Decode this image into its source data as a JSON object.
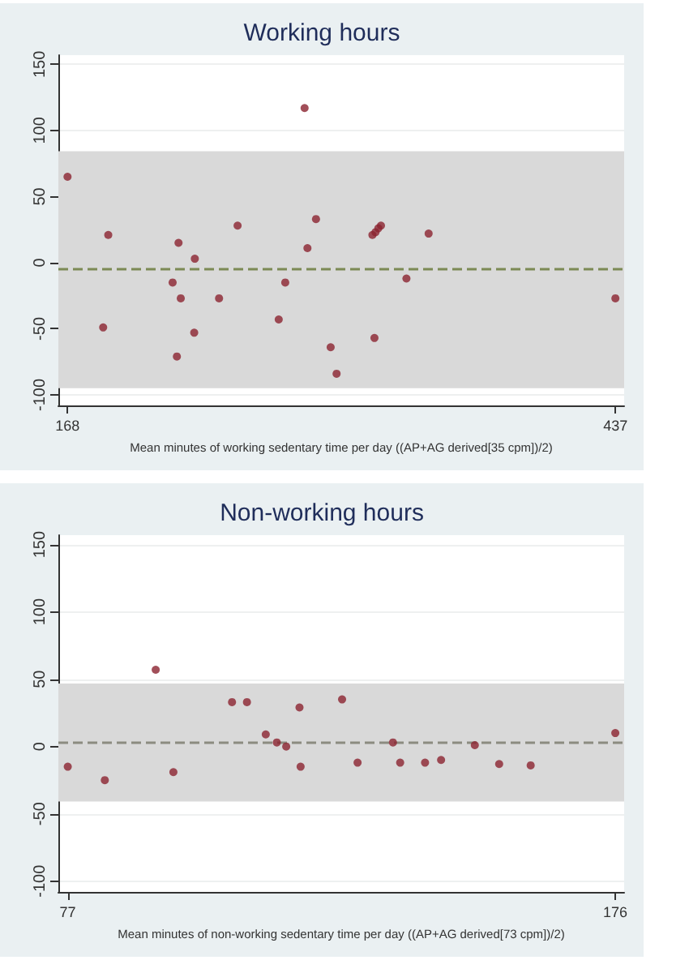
{
  "chart_data": [
    {
      "type": "scatter",
      "title": "Working hours",
      "xlabel": "Mean minutes of working sedentary time per day ((AP+AG derived[35 cpm])/2)",
      "xlim": [
        163.5,
        441.3
      ],
      "xticks": [
        168,
        437
      ],
      "ylim": [
        -108,
        157
      ],
      "yticks": [
        -100,
        -50,
        0,
        50,
        100,
        150
      ],
      "grid": "y",
      "marker": "circle",
      "series": [
        {
          "color": "#8b2330",
          "x": [
            168,
            188,
            185.5,
            222.5,
            230.5,
            219.6,
            223.6,
            242.4,
            230.2,
            221.7,
            251.5,
            271.7,
            274.9,
            284.4,
            285.8,
            290,
            297.2,
            300.1,
            317.7,
            319.2,
            320.6,
            321.9,
            318.7,
            334.4,
            345.3,
            437
          ],
          "values": [
            65,
            21,
            -49,
            15,
            3,
            -15,
            -27,
            -27,
            -53,
            -71,
            28,
            -43,
            -15,
            117,
            11,
            33,
            -64,
            -84,
            21,
            23,
            26,
            28,
            -57,
            -12,
            22,
            -27
          ]
        }
      ],
      "ref_lines": [
        {
          "axis": "y",
          "value": -5.1,
          "color": "#7c8a55",
          "line_style": "dashed"
        }
      ],
      "bands": [
        {
          "axis": "y",
          "from": -94.9,
          "to": 84.3,
          "color": "#d9d9d9"
        }
      ]
    },
    {
      "type": "scatter",
      "title": "Non-working hours",
      "xlabel": "Mean minutes of non-working sedentary time per day ((AP+AG derived[73 cpm])/2)",
      "xlim": [
        75.3,
        177.6
      ],
      "xticks": [
        77,
        176
      ],
      "ylim": [
        -108,
        157
      ],
      "yticks": [
        -100,
        -50,
        0,
        50,
        100,
        150
      ],
      "grid": "y",
      "marker": "circle",
      "series": [
        {
          "color": "#8b2330",
          "x": [
            77,
            83.7,
            92.9,
            96.1,
            106.7,
            109.4,
            112.8,
            114.8,
            116.5,
            118.9,
            119.1,
            126.6,
            129.4,
            135.8,
            137.1,
            141.6,
            144.5,
            150.6,
            155,
            160.7,
            176
          ],
          "values": [
            -15,
            -25,
            57,
            -19,
            33,
            33,
            9,
            3,
            0,
            29,
            -15,
            35,
            -12,
            3,
            -12,
            -12,
            -10,
            1,
            -13,
            -14,
            10
          ]
        }
      ],
      "ref_lines": [
        {
          "axis": "y",
          "value": 2.8,
          "color": "#8c8c80",
          "line_style": "dashed"
        }
      ],
      "bands": [
        {
          "axis": "y",
          "from": -40.9,
          "to": 46.8,
          "color": "#d9d9d9"
        }
      ]
    }
  ]
}
